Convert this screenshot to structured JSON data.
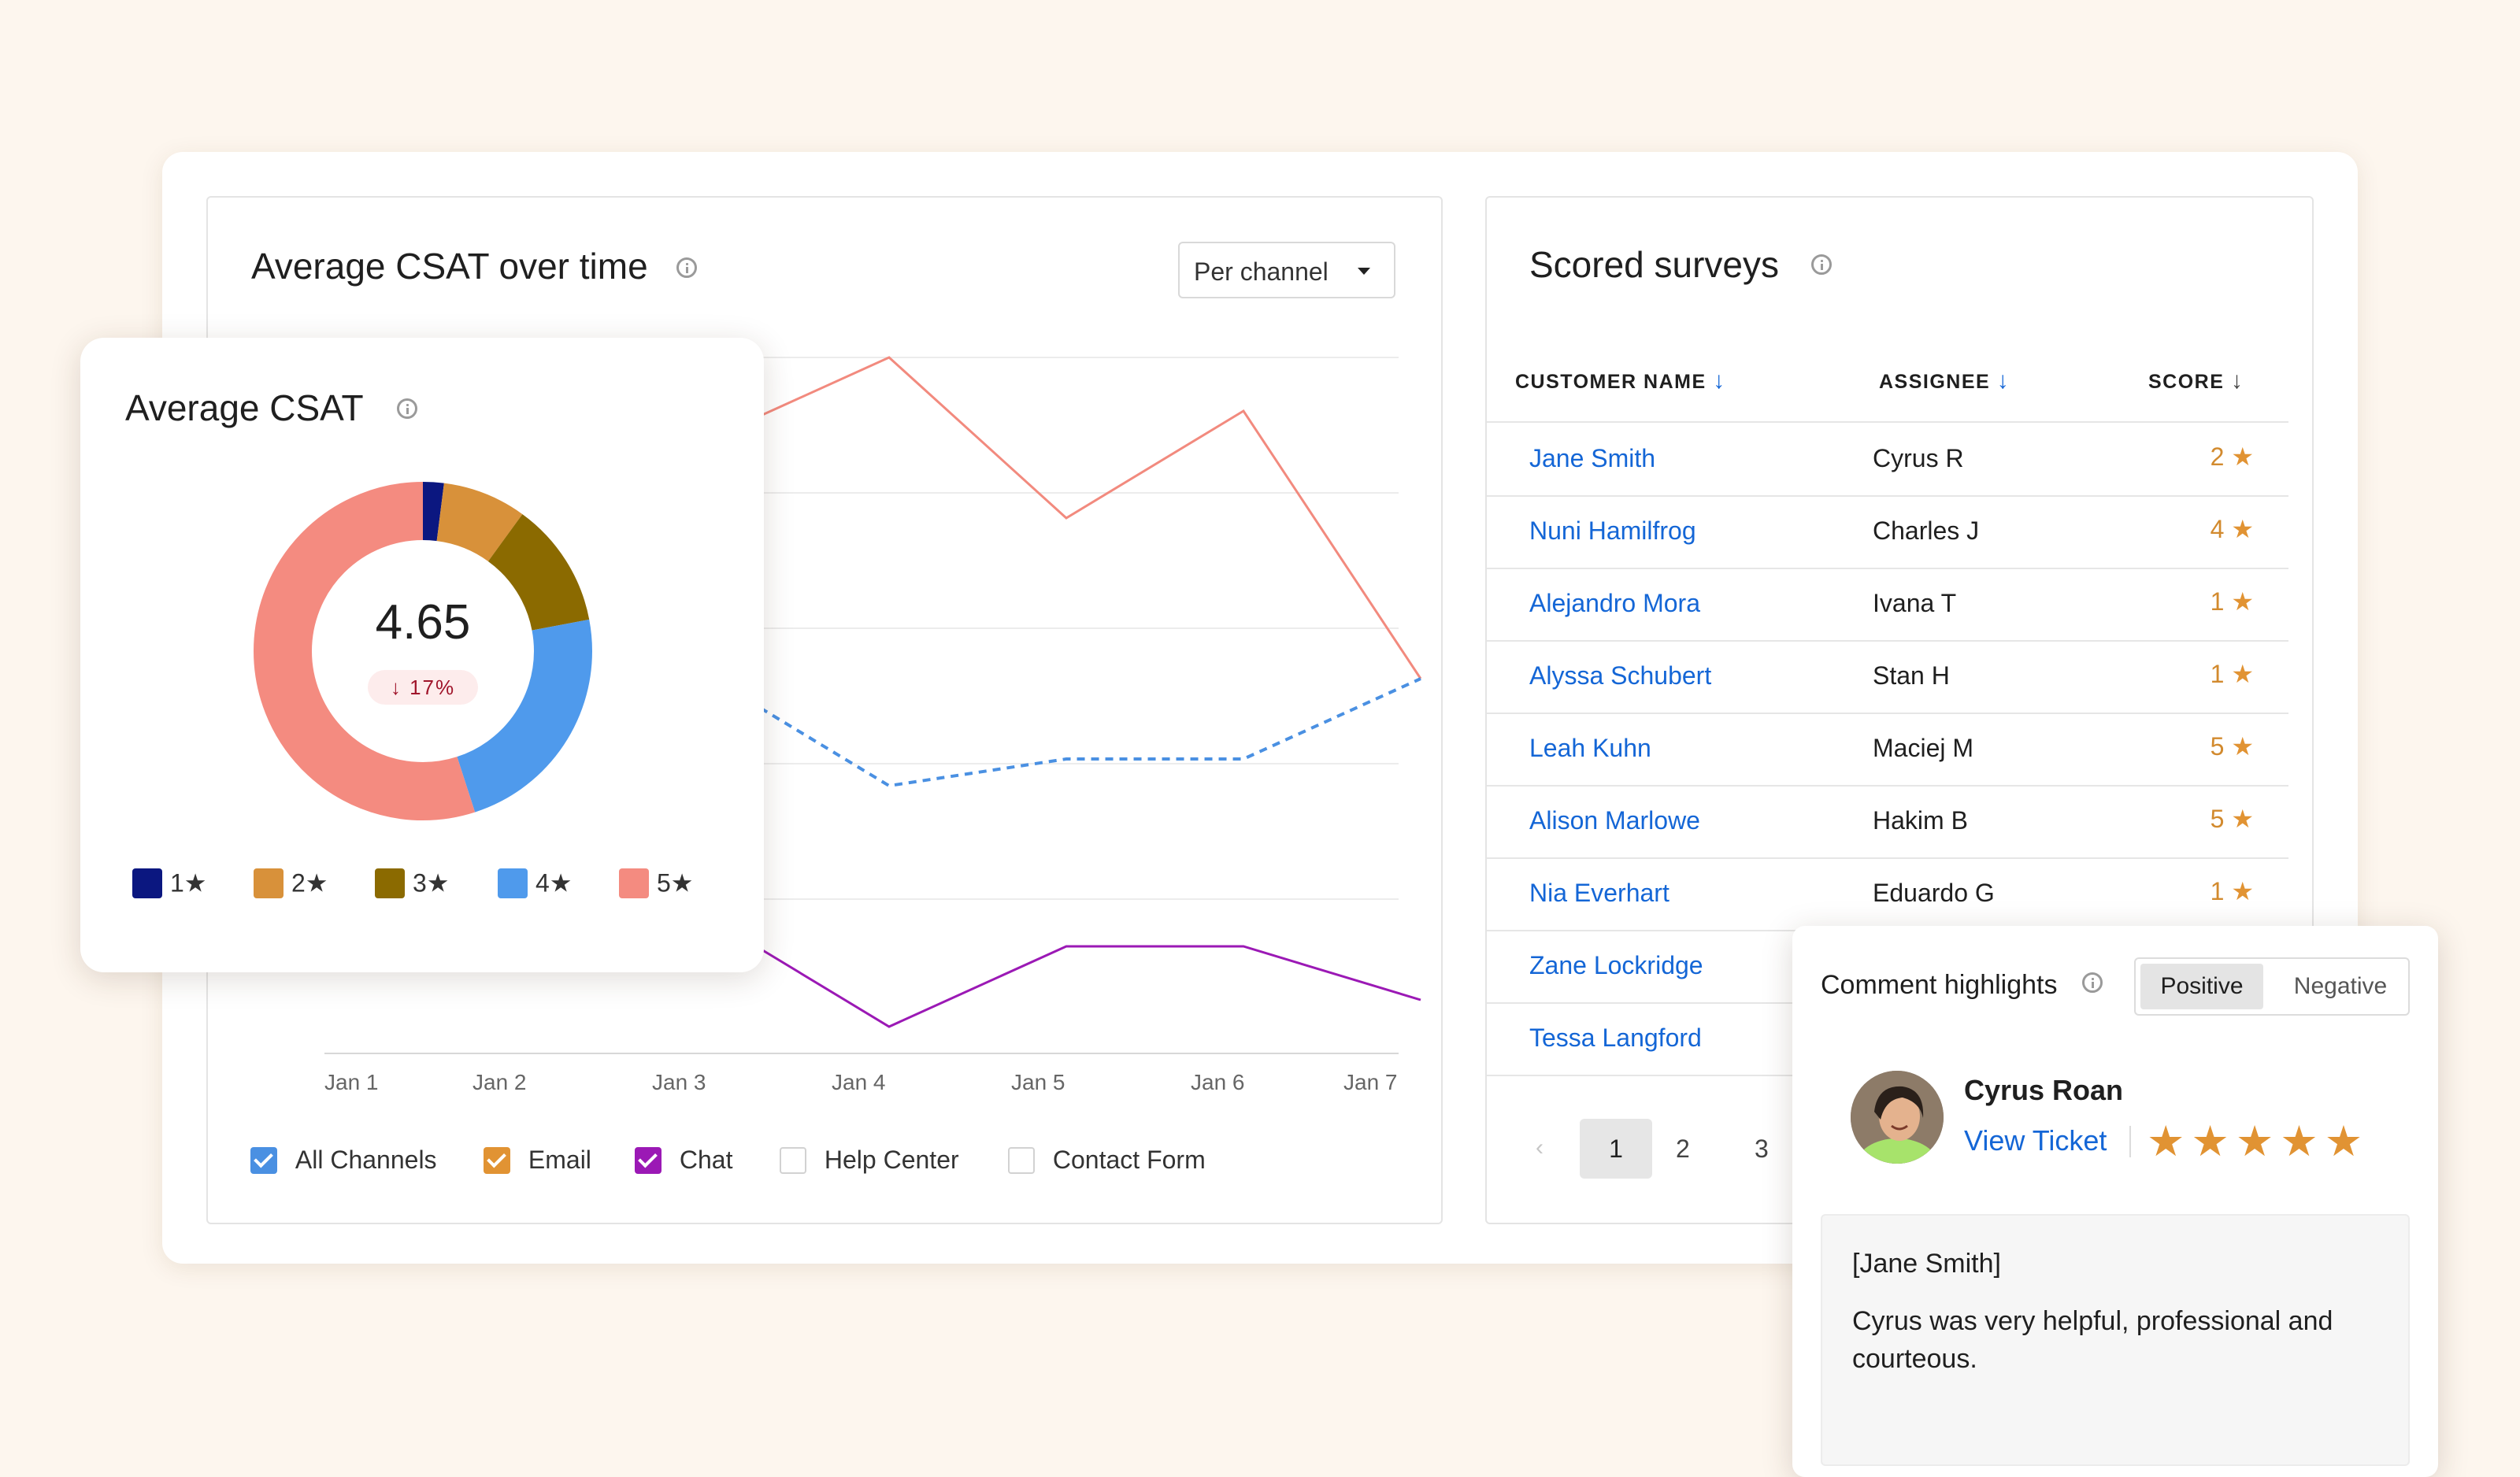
{
  "csat_over_time": {
    "title": "Average CSAT over time",
    "dropdown": {
      "value": "Per channel",
      "icon": "caret-down-icon"
    },
    "x_labels": [
      "Jan 1",
      "Jan 2",
      "Jan 3",
      "Jan 4",
      "Jan 5",
      "Jan 6",
      "Jan 7"
    ],
    "channels": [
      {
        "label": "All Channels",
        "checked": true,
        "color": "#4A90E2"
      },
      {
        "label": "Email",
        "checked": true,
        "color": "#E19333"
      },
      {
        "label": "Chat",
        "checked": true,
        "color": "#9B19B5"
      },
      {
        "label": "Help Center",
        "checked": false,
        "color": "#D2D2D2"
      },
      {
        "label": "Contact Form",
        "checked": false,
        "color": "#D2D2D2"
      }
    ]
  },
  "chart_data": [
    {
      "type": "line",
      "title": "Average CSAT over time",
      "categories": [
        "Jan 1",
        "Jan 2",
        "Jan 3",
        "Jan 4",
        "Jan 5",
        "Jan 6",
        "Jan 7"
      ],
      "series": [
        {
          "name": "Email",
          "color": "#F28A7E",
          "values": [
            null,
            null,
            4.7,
            5.0,
            4.4,
            4.8,
            3.8
          ]
        },
        {
          "name": "All Channels",
          "color": "#4A90E2",
          "style": "dashed",
          "values": [
            null,
            null,
            3.8,
            3.4,
            3.5,
            3.5,
            3.8
          ]
        },
        {
          "name": "Chat",
          "color": "#9B19B5",
          "values": [
            null,
            null,
            2.9,
            2.5,
            2.8,
            2.8,
            2.6
          ]
        }
      ]
    },
    {
      "type": "pie",
      "title": "Average CSAT",
      "categories": [
        "1★",
        "2★",
        "3★",
        "4★",
        "5★"
      ],
      "values": [
        2,
        8,
        12,
        23,
        55
      ],
      "colors": [
        "#0B1780",
        "#D8913A",
        "#8B6A00",
        "#4F9AEC",
        "#F48B80"
      ]
    }
  ],
  "avg_csat": {
    "title": "Average CSAT",
    "value": "4.65",
    "delta": "17%",
    "delta_icon": "arrow-down-icon",
    "legend": [
      "1★",
      "2★",
      "3★",
      "4★",
      "5★"
    ]
  },
  "surveys": {
    "title": "Scored surveys",
    "columns": [
      "CUSTOMER NAME",
      "ASSIGNEE",
      "SCORE"
    ],
    "rows": [
      {
        "name": "Jane Smith",
        "assignee": "Cyrus R",
        "score": "2"
      },
      {
        "name": "Nuni Hamilfrog",
        "assignee": "Charles J",
        "score": "4"
      },
      {
        "name": "Alejandro Mora",
        "assignee": "Ivana T",
        "score": "1"
      },
      {
        "name": "Alyssa Schubert",
        "assignee": "Stan H",
        "score": "1"
      },
      {
        "name": "Leah Kuhn",
        "assignee": "Maciej M",
        "score": "5"
      },
      {
        "name": "Alison Marlowe",
        "assignee": "Hakim B",
        "score": "5"
      },
      {
        "name": "Nia Everhart",
        "assignee": "Eduardo G",
        "score": "1"
      },
      {
        "name": "Zane Lockridge",
        "assignee": "",
        "score": ""
      },
      {
        "name": "Tessa Langford",
        "assignee": "",
        "score": ""
      }
    ],
    "pages": [
      "1",
      "2",
      "3"
    ]
  },
  "highlights": {
    "title": "Comment highlights",
    "tabs": [
      "Positive",
      "Negative"
    ],
    "active_tab": "Positive",
    "agent_name": "Cyrus Roan",
    "view_ticket": "View Ticket",
    "rating": 5,
    "comment_author": "[Jane Smith]",
    "comment_text": "Cyrus was very helpful, professional and courteous."
  }
}
